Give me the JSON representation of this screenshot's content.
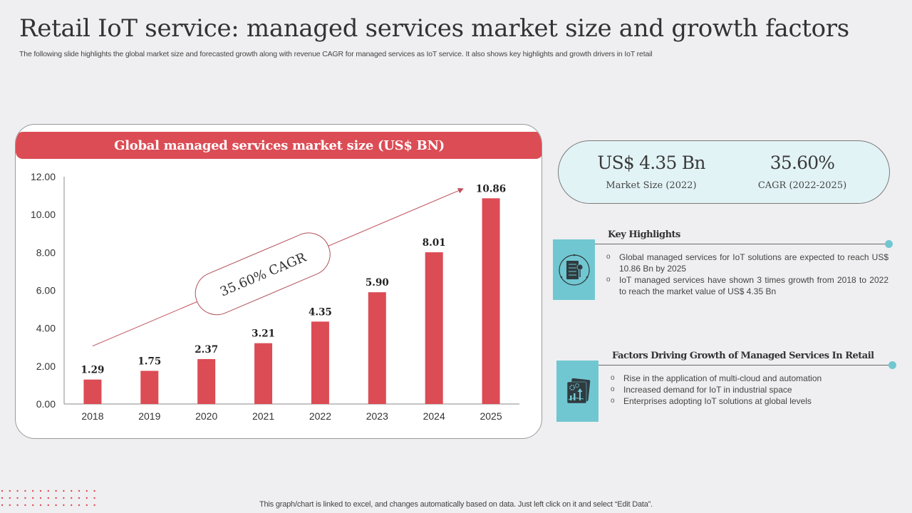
{
  "header": {
    "title": "Retail IoT service: managed services market size and growth factors",
    "subtitle": "The following slide highlights the global market size and forecasted growth along with revenue CAGR for managed services as IoT service. It also shows key highlights and growth drivers in IoT retail"
  },
  "colors": {
    "accent_red": "#dc4c55",
    "accent_teal": "#71c7d1",
    "pill_bg": "#e2f3f6"
  },
  "chart_data": {
    "type": "bar",
    "title": "Global managed services market size (US$ BN)",
    "categories": [
      "2018",
      "2019",
      "2020",
      "2021",
      "2022",
      "2023",
      "2024",
      "2025"
    ],
    "values": [
      1.29,
      1.75,
      2.37,
      3.21,
      4.35,
      5.9,
      8.01,
      10.86
    ],
    "data_labels": [
      "1.29",
      "1.75",
      "2.37",
      "3.21",
      "4.35",
      "5.90",
      "8.01",
      "10.86"
    ],
    "ylim": [
      0,
      12
    ],
    "yticks": [
      0,
      2,
      4,
      6,
      8,
      10,
      12
    ],
    "ytick_labels": [
      "0.00",
      "2.00",
      "4.00",
      "6.00",
      "8.00",
      "10.00",
      "12.00"
    ],
    "xlabel": "",
    "ylabel": "",
    "grid": false,
    "bar_color": "#dc4c55",
    "annotation": {
      "text": "35.60% CAGR",
      "type": "trend-arrow",
      "from_category": "2018",
      "to_category": "2025"
    }
  },
  "stats": [
    {
      "value": "US$ 4.35 Bn",
      "label": "Market Size (2022)"
    },
    {
      "value": "35.60%",
      "label": "CAGR (2022-2025)"
    }
  ],
  "key_highlights": {
    "icon": "document-icon",
    "title": "Key Highlights",
    "items": [
      "Global managed services for IoT solutions are expected to reach US$ 10.86 Bn by 2025",
      "IoT managed services have shown 3 times growth from 2018 to 2022 to reach the market value of US$ 4.35 Bn"
    ]
  },
  "growth_factors": {
    "icon": "growth-gears-icon",
    "title": "Factors Driving Growth of Managed Services In Retail",
    "items": [
      "Rise in the application of multi-cloud and automation",
      "Increased demand for IoT in industrial space",
      "Enterprises adopting IoT solutions at global levels"
    ]
  },
  "footer": {
    "note": "This graph/chart is linked to excel, and changes automatically based on data. Just left click on it and select “Edit Data”."
  }
}
